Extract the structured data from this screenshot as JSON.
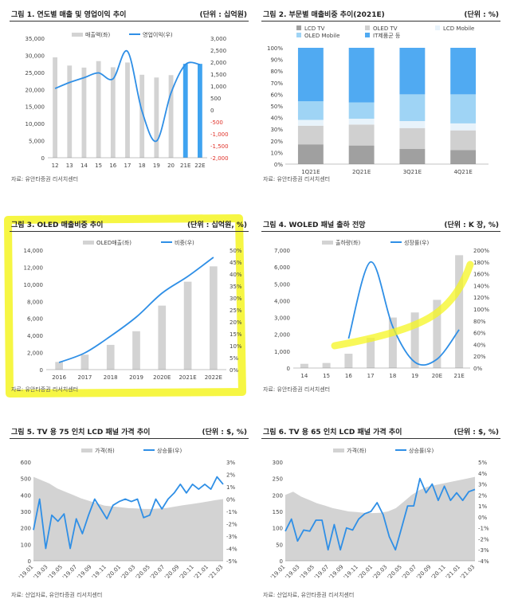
{
  "colors": {
    "bar_gray": "#d3d3d3",
    "bar_blue": "#3fa3f0",
    "line_blue": "#2f8fe6",
    "neg_red": "#e0322a",
    "highlight": "#f5f522",
    "stack_dark": "#a0a0a0",
    "stack_mid": "#d0d0d0",
    "stack_light": "#e8f3fb",
    "stack_mid_blue": "#9fd4f5",
    "stack_blue": "#50aaf2"
  },
  "chart_data": [
    {
      "id": "c1",
      "type": "bar+line",
      "title": "그림 1. 연도별 매출 및 영업이익 추이",
      "unit": "(단위 : 십억원)",
      "source": "자료: 유안타증권 리서치센터",
      "legend": [
        "매출액(좌)",
        "영업이익(우)"
      ],
      "categories": [
        "12",
        "13",
        "14",
        "15",
        "16",
        "17",
        "18",
        "19",
        "20",
        "21E",
        "22E"
      ],
      "bar_values": [
        29400,
        27000,
        26400,
        28300,
        26500,
        27900,
        24300,
        23500,
        24200,
        27500,
        27500
      ],
      "highlight_bars": [
        9,
        10
      ],
      "line_values": [
        900,
        1150,
        1350,
        1550,
        1300,
        2450,
        -50,
        -1300,
        700,
        1900,
        1900
      ],
      "left_ticks": [
        "35,000",
        "30,000",
        "25,000",
        "20,000",
        "15,000",
        "10,000",
        "5,000",
        "0"
      ],
      "left_range": [
        0,
        35000
      ],
      "right_ticks": [
        "3,000",
        "2,500",
        "2,000",
        "1,500",
        "1,000",
        "500",
        "0",
        "-500",
        "-1,000",
        "-1,500",
        "-2,000"
      ],
      "right_range": [
        -2000,
        3000
      ]
    },
    {
      "id": "c2",
      "type": "stacked_bar",
      "title": "그림 2. 부문별 매출비중 추이(2021E)",
      "unit": "(단위 : %)",
      "source": "자료: 유안타증권 리서치센터",
      "categories": [
        "1Q21E",
        "2Q21E",
        "3Q21E",
        "4Q21E"
      ],
      "series": [
        {
          "name": "LCD TV",
          "values": [
            17,
            16,
            13,
            12
          ]
        },
        {
          "name": "OLED TV",
          "values": [
            16,
            18,
            18,
            17
          ]
        },
        {
          "name": "LCD Mobile",
          "values": [
            5,
            5,
            6,
            6
          ]
        },
        {
          "name": "OLED Mobile",
          "values": [
            16,
            14,
            23,
            25
          ]
        },
        {
          "name": "IT제품군 등",
          "values": [
            46,
            47,
            40,
            40
          ]
        }
      ],
      "left_ticks": [
        "100%",
        "90%",
        "80%",
        "70%",
        "60%",
        "50%",
        "40%",
        "30%",
        "20%",
        "10%",
        "0%"
      ]
    },
    {
      "id": "c3",
      "type": "bar+line",
      "title": "그림 3. OLED 매출비중 추이",
      "unit": "(단위 : 십억원, %)",
      "source": "자료: 유안타증권 리서치센터",
      "legend": [
        "OLED매출(좌)",
        "비중(우)"
      ],
      "categories": [
        "2016",
        "2017",
        "2018",
        "2019",
        "2020E",
        "2021E",
        "2022E"
      ],
      "bar_values": [
        900,
        1750,
        2900,
        4500,
        7500,
        10300,
        12100
      ],
      "line_values": [
        3,
        7,
        14,
        22,
        32,
        39,
        47
      ],
      "left_ticks": [
        "14,000",
        "12,000",
        "10,000",
        "8,000",
        "6,000",
        "4,000",
        "2,000",
        "0"
      ],
      "left_range": [
        0,
        14000
      ],
      "right_ticks": [
        "50%",
        "45%",
        "40%",
        "35%",
        "30%",
        "25%",
        "20%",
        "15%",
        "10%",
        "5%",
        "0%"
      ],
      "right_range": [
        0,
        50
      ]
    },
    {
      "id": "c4",
      "type": "bar+line",
      "title": "그림 4. WOLED 패널 출하 전망",
      "unit": "(단위 : K 장, %)",
      "source": "자료: 유안타증권 리서치센터",
      "legend": [
        "출하량(좌)",
        "성장률(우)"
      ],
      "categories": [
        "14",
        "15",
        "16",
        "17",
        "18",
        "19",
        "20E",
        "21E"
      ],
      "bar_values": [
        250,
        300,
        850,
        1800,
        3000,
        3300,
        4050,
        6700
      ],
      "line_values": [
        null,
        null,
        50,
        180,
        70,
        10,
        15,
        65
      ],
      "left_ticks": [
        "7,000",
        "6,000",
        "5,000",
        "4,000",
        "3,000",
        "2,000",
        "1,000",
        "0"
      ],
      "left_range": [
        0,
        7000
      ],
      "right_ticks": [
        "200%",
        "180%",
        "160%",
        "140%",
        "120%",
        "100%",
        "80%",
        "60%",
        "40%",
        "20%",
        "0%"
      ],
      "right_range": [
        0,
        200
      ]
    },
    {
      "id": "c5",
      "type": "area+line",
      "title": "그림 5. TV 용 75 인치 LCD 패널 가격 추이",
      "unit": "(단위 : $, %)",
      "source": "자료: 산업자료, 유안타증권 리서치센터",
      "legend": [
        "가격(좌)",
        "상승률(우)"
      ],
      "x_labels": [
        "'19.01",
        "'19.03",
        "'19.05",
        "'19.07",
        "'19.09",
        "'19.11",
        "'20.01",
        "'20.03",
        "'20.05",
        "'20.07",
        "'20.09",
        "'20.11",
        "'21.01",
        "'21.03"
      ],
      "area_values": [
        510,
        490,
        470,
        440,
        420,
        400,
        380,
        365,
        350,
        335,
        330,
        325,
        320,
        318,
        315,
        315,
        318,
        322,
        330,
        338,
        345,
        352,
        360,
        368,
        375
      ],
      "line_values": [
        -2.5,
        0,
        -4,
        -1.3,
        -1.8,
        -1.2,
        -4,
        -1.6,
        -2.8,
        -1.3,
        0,
        -0.8,
        -1.6,
        -0.5,
        -0.2,
        0,
        -0.2,
        0,
        -1.5,
        -1.3,
        0,
        -0.8,
        0,
        0.5,
        1.2,
        0.5,
        1.2,
        0.8,
        1.2,
        0.8,
        1.8,
        1.2
      ],
      "left_ticks": [
        "600",
        "500",
        "400",
        "300",
        "200",
        "100",
        "0"
      ],
      "left_range": [
        0,
        600
      ],
      "right_ticks": [
        "3%",
        "2%",
        "1%",
        "0%",
        "-1%",
        "-2%",
        "-3%",
        "-4%",
        "-5%"
      ],
      "right_range": [
        -5,
        3
      ]
    },
    {
      "id": "c6",
      "type": "area+line",
      "title": "그림 6. TV 용 65 인치 LCD 패널 가격 추이",
      "unit": "(단위 : $, %)",
      "source": "자료: 산업자료, 유안타증권 리서치센터",
      "legend": [
        "가격(좌)",
        "상승률(우)"
      ],
      "x_labels": [
        "'19.01",
        "'19.03",
        "'19.05",
        "'19.07",
        "'19.09",
        "'19.11",
        "'20.01",
        "'20.03",
        "'20.05",
        "'20.07",
        "'20.09",
        "'20.11",
        "'21.01",
        "'21.03"
      ],
      "area_values": [
        200,
        210,
        195,
        185,
        175,
        168,
        160,
        155,
        150,
        148,
        146,
        145,
        146,
        150,
        160,
        180,
        200,
        215,
        225,
        230,
        235,
        240,
        245,
        250,
        255
      ],
      "line_values": [
        -1.3,
        -0.2,
        -2.2,
        -1.2,
        -1.3,
        -0.3,
        -0.3,
        -3,
        -0.7,
        -3,
        -1,
        -1.2,
        -0.2,
        0.3,
        0.5,
        1.3,
        0.2,
        -1.8,
        -3,
        -1,
        1,
        1,
        3.5,
        2.2,
        3,
        1.5,
        2.8,
        1.5,
        2.2,
        1.5,
        2.3,
        2.5
      ],
      "left_ticks": [
        "300",
        "250",
        "200",
        "150",
        "100",
        "50",
        "0"
      ],
      "left_range": [
        0,
        300
      ],
      "right_ticks": [
        "5%",
        "4%",
        "3%",
        "2%",
        "1%",
        "0%",
        "-1%",
        "-2%",
        "-3%",
        "-4%"
      ],
      "right_range": [
        -4,
        5
      ]
    }
  ]
}
